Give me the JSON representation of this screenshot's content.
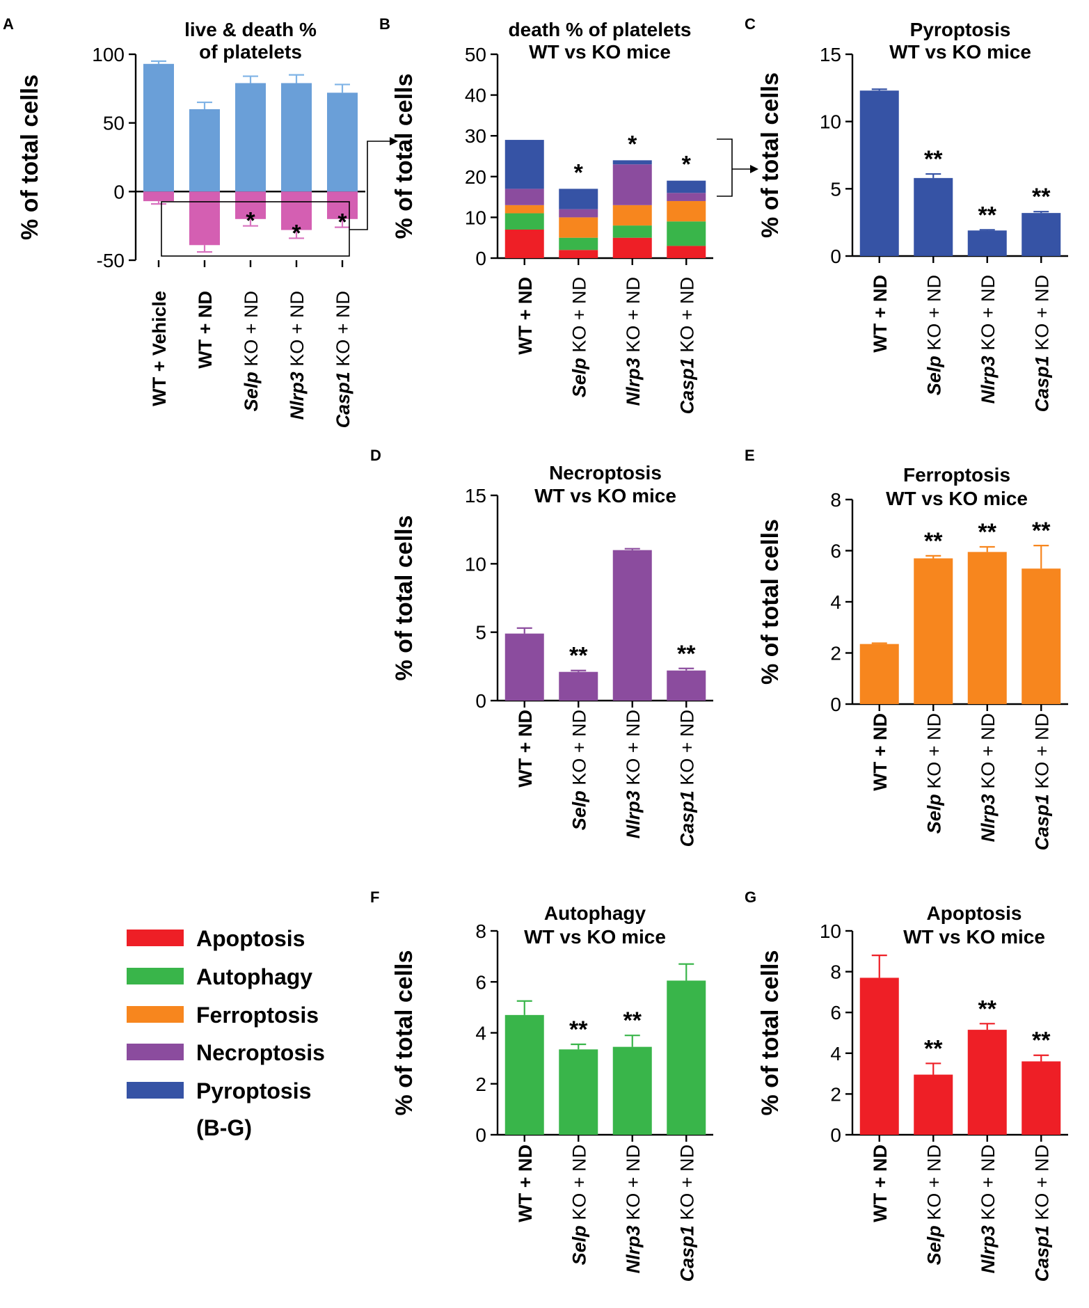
{
  "colors": {
    "live": "#6a9fd8",
    "live_err": "#7fb3e6",
    "death": "#d45fb2",
    "death_err": "#d873bf",
    "Apoptosis": "#ee1f26",
    "Autophagy": "#39b54a",
    "Ferroptosis": "#f7861e",
    "Necroptosis": "#8b4c9e",
    "Pyroptosis": "#3653a5"
  },
  "legend": {
    "items": [
      {
        "label": "Apoptosis",
        "color": "#ee1f26"
      },
      {
        "label": "Autophagy",
        "color": "#39b54a"
      },
      {
        "label": "Ferroptosis",
        "color": "#f7861e"
      },
      {
        "label": "Necroptosis",
        "color": "#8b4c9e"
      },
      {
        "label": "Pyroptosis",
        "color": "#3653a5"
      }
    ],
    "note": "(B-G)"
  },
  "chart_data": [
    {
      "id": "A",
      "panel_label": "A",
      "type": "bar",
      "title_lines": [
        "live & death %",
        "of platelets"
      ],
      "ylabel": "% of total cells",
      "ylim": [
        -50,
        100
      ],
      "yticks": [
        -50,
        0,
        50,
        100
      ],
      "categories": [
        {
          "gene": "",
          "text": "WT + Vehicle"
        },
        {
          "gene": "",
          "text": "WT + ND"
        },
        {
          "gene": "Selp",
          "text": " KO + ND"
        },
        {
          "gene": "Nlrp3",
          "text": " KO + ND"
        },
        {
          "gene": "Casp1",
          "text": " KO + ND"
        }
      ],
      "series": [
        {
          "name": "live",
          "values": [
            93,
            60,
            79,
            79,
            72
          ],
          "errors": [
            2,
            5,
            5,
            6,
            6
          ]
        },
        {
          "name": "death",
          "values": [
            -7,
            -39,
            -20,
            -28,
            -20
          ],
          "errors": [
            2,
            5,
            5,
            6,
            6
          ]
        }
      ],
      "significance": [
        "",
        "",
        "*",
        "*",
        "*"
      ]
    },
    {
      "id": "B",
      "panel_label": "B",
      "type": "stacked-bar",
      "title_lines": [
        "death % of platelets",
        "WT vs KO mice"
      ],
      "ylabel": "% of total cells",
      "ylim": [
        0,
        50
      ],
      "yticks": [
        0,
        10,
        20,
        30,
        40,
        50
      ],
      "categories": [
        {
          "gene": "",
          "text": "WT + ND"
        },
        {
          "gene": "Selp",
          "text": " KO + ND"
        },
        {
          "gene": "Nlrp3",
          "text": " KO + ND"
        },
        {
          "gene": "Casp1",
          "text": " KO + ND"
        }
      ],
      "series": [
        {
          "name": "Apoptosis",
          "values": [
            7,
            2,
            5,
            3
          ]
        },
        {
          "name": "Autophagy",
          "values": [
            4,
            3,
            3,
            6
          ]
        },
        {
          "name": "Ferroptosis",
          "values": [
            2,
            5,
            5,
            5
          ]
        },
        {
          "name": "Necroptosis",
          "values": [
            4,
            2,
            10,
            2
          ]
        },
        {
          "name": "Pyroptosis",
          "values": [
            12,
            5,
            1,
            3
          ]
        }
      ],
      "significance": [
        "",
        "*",
        "*",
        "*"
      ]
    },
    {
      "id": "C",
      "panel_label": "C",
      "type": "bar",
      "title_lines": [
        "Pyroptosis",
        "WT vs KO mice"
      ],
      "ylabel": "% of total cells",
      "color": "#3653a5",
      "ylim": [
        0,
        15
      ],
      "yticks": [
        0,
        5,
        10,
        15
      ],
      "categories": [
        {
          "gene": "",
          "text": "WT + ND"
        },
        {
          "gene": "Selp",
          "text": " KO + ND"
        },
        {
          "gene": "Nlrp3",
          "text": " KO + ND"
        },
        {
          "gene": "Casp1",
          "text": " KO + ND"
        }
      ],
      "values": [
        12.3,
        5.8,
        1.9,
        3.2
      ],
      "errors": [
        0.1,
        0.3,
        0.05,
        0.1
      ],
      "significance": [
        "",
        "**",
        "**",
        "**"
      ]
    },
    {
      "id": "D",
      "panel_label": "D",
      "type": "bar",
      "title_lines": [
        "Necroptosis",
        "WT vs KO mice"
      ],
      "ylabel": "% of total cells",
      "color": "#8b4c9e",
      "ylim": [
        0,
        15
      ],
      "yticks": [
        0,
        5,
        10,
        15
      ],
      "categories": [
        {
          "gene": "",
          "text": "WT + ND"
        },
        {
          "gene": "Selp",
          "text": " KO + ND"
        },
        {
          "gene": "Nlrp3",
          "text": " KO + ND"
        },
        {
          "gene": "Casp1",
          "text": " KO + ND"
        }
      ],
      "values": [
        4.9,
        2.1,
        11.0,
        2.2
      ],
      "errors": [
        0.4,
        0.1,
        0.1,
        0.15
      ],
      "significance": [
        "",
        "**",
        "",
        "**"
      ]
    },
    {
      "id": "E",
      "panel_label": "E",
      "type": "bar",
      "title_lines": [
        "Ferroptosis",
        "WT vs KO mice"
      ],
      "ylabel": "% of total cells",
      "color": "#f7861e",
      "ylim": [
        0,
        8
      ],
      "yticks": [
        0,
        2,
        4,
        6,
        8
      ],
      "categories": [
        {
          "gene": "",
          "text": "WT + ND"
        },
        {
          "gene": "Selp",
          "text": " KO + ND"
        },
        {
          "gene": "Nlrp3",
          "text": " KO + ND"
        },
        {
          "gene": "Casp1",
          "text": " KO + ND"
        }
      ],
      "values": [
        2.35,
        5.7,
        5.95,
        5.3
      ],
      "errors": [
        0.03,
        0.1,
        0.2,
        0.9
      ],
      "significance": [
        "",
        "**",
        "**",
        "**"
      ]
    },
    {
      "id": "F",
      "panel_label": "F",
      "type": "bar",
      "title_lines": [
        "Autophagy",
        "WT vs KO mice"
      ],
      "ylabel": "% of total cells",
      "color": "#39b54a",
      "ylim": [
        0,
        8
      ],
      "yticks": [
        0,
        2,
        4,
        6,
        8
      ],
      "categories": [
        {
          "gene": "",
          "text": "WT + ND"
        },
        {
          "gene": "Selp",
          "text": " KO + ND"
        },
        {
          "gene": "Nlrp3",
          "text": " KO + ND"
        },
        {
          "gene": "Casp1",
          "text": " KO + ND"
        }
      ],
      "values": [
        4.7,
        3.35,
        3.45,
        6.05
      ],
      "errors": [
        0.55,
        0.2,
        0.45,
        0.65
      ],
      "significance": [
        "",
        "**",
        "**",
        ""
      ]
    },
    {
      "id": "G",
      "panel_label": "G",
      "type": "bar",
      "title_lines": [
        "Apoptosis",
        "WT vs KO mice"
      ],
      "ylabel": "% of total cells",
      "color": "#ee1f26",
      "ylim": [
        0,
        10
      ],
      "yticks": [
        0,
        2,
        4,
        6,
        8,
        10
      ],
      "categories": [
        {
          "gene": "",
          "text": "WT + ND"
        },
        {
          "gene": "Selp",
          "text": " KO + ND"
        },
        {
          "gene": "Nlrp3",
          "text": " KO + ND"
        },
        {
          "gene": "Casp1",
          "text": " KO + ND"
        }
      ],
      "values": [
        7.7,
        2.95,
        5.15,
        3.6
      ],
      "errors": [
        1.1,
        0.55,
        0.3,
        0.3
      ],
      "significance": [
        "",
        "**",
        "**",
        "**"
      ]
    }
  ]
}
